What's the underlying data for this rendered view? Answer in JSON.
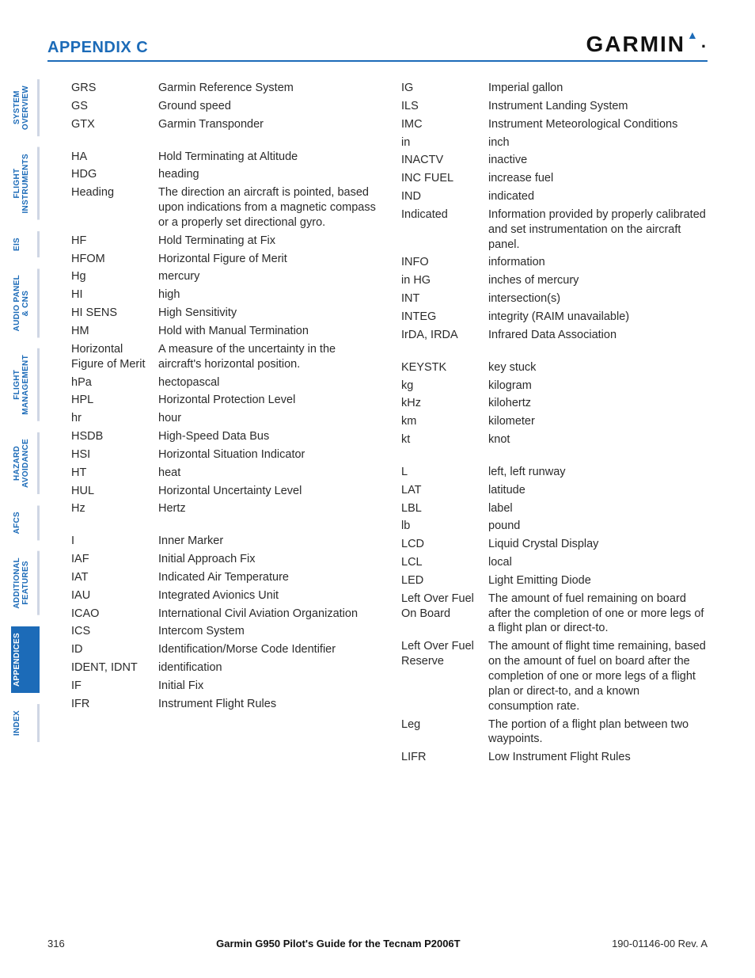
{
  "header": {
    "title": "APPENDIX C",
    "brand": "GARMIN"
  },
  "tabs": [
    {
      "label": "SYSTEM\nOVERVIEW",
      "active": false
    },
    {
      "label": "FLIGHT\nINSTRUMENTS",
      "active": false
    },
    {
      "label": "EIS",
      "active": false
    },
    {
      "label": "AUDIO PANEL\n& CNS",
      "active": false
    },
    {
      "label": "FLIGHT\nMANAGEMENT",
      "active": false
    },
    {
      "label": "HAZARD\nAVOIDANCE",
      "active": false
    },
    {
      "label": "AFCS",
      "active": false
    },
    {
      "label": "ADDITIONAL\nFEATURES",
      "active": false
    },
    {
      "label": "APPENDICES",
      "active": true
    },
    {
      "label": "INDEX",
      "active": false
    }
  ],
  "col1": [
    {
      "t": "GRS",
      "d": "Garmin Reference System"
    },
    {
      "t": "GS",
      "d": "Ground speed"
    },
    {
      "t": "GTX",
      "d": "Garmin Transponder"
    },
    {
      "gap": true
    },
    {
      "t": "HA",
      "d": "Hold Terminating at Altitude"
    },
    {
      "t": "HDG",
      "d": "heading"
    },
    {
      "t": "Heading",
      "d": "The direction an aircraft is pointed, based upon indications from a magnetic compass or a properly set directional gyro."
    },
    {
      "t": "HF",
      "d": "Hold Terminating at Fix"
    },
    {
      "t": "HFOM",
      "d": "Horizontal Figure of Merit"
    },
    {
      "t": "Hg",
      "d": "mercury"
    },
    {
      "t": "HI",
      "d": "high"
    },
    {
      "t": "HI SENS",
      "d": "High Sensitivity"
    },
    {
      "t": "HM",
      "d": "Hold with Manual Termination"
    },
    {
      "t": "Horizontal Figure of Merit",
      "d": "A measure of the uncertainty in the aircraft's horizontal position."
    },
    {
      "t": "hPa",
      "d": "hectopascal"
    },
    {
      "t": "HPL",
      "d": "Horizontal Protection Level"
    },
    {
      "t": "hr",
      "d": "hour"
    },
    {
      "t": "HSDB",
      "d": "High-Speed Data Bus"
    },
    {
      "t": "HSI",
      "d": "Horizontal Situation Indicator"
    },
    {
      "t": "HT",
      "d": "heat"
    },
    {
      "t": "HUL",
      "d": "Horizontal Uncertainty Level"
    },
    {
      "t": "Hz",
      "d": "Hertz"
    },
    {
      "gap": true
    },
    {
      "t": "I",
      "d": "Inner Marker"
    },
    {
      "t": "IAF",
      "d": "Initial Approach Fix"
    },
    {
      "t": "IAT",
      "d": "Indicated Air Temperature"
    },
    {
      "t": "IAU",
      "d": "Integrated Avionics Unit"
    },
    {
      "t": "ICAO",
      "d": "International Civil Aviation Organization"
    },
    {
      "t": "ICS",
      "d": "Intercom System"
    },
    {
      "t": "ID",
      "d": "Identification/Morse Code Identifier"
    },
    {
      "t": "IDENT, IDNT",
      "d": "identification"
    },
    {
      "t": "IF",
      "d": "Initial Fix"
    },
    {
      "t": "IFR",
      "d": "Instrument Flight Rules"
    }
  ],
  "col2": [
    {
      "t": "IG",
      "d": "Imperial gallon"
    },
    {
      "t": "ILS",
      "d": "Instrument Landing System"
    },
    {
      "t": "IMC",
      "d": "Instrument Meteorological Conditions"
    },
    {
      "t": "in",
      "d": "inch"
    },
    {
      "t": "INACTV",
      "d": "inactive"
    },
    {
      "t": "INC FUEL",
      "d": "increase fuel"
    },
    {
      "t": "IND",
      "d": "indicated"
    },
    {
      "t": "Indicated",
      "d": "Information provided by properly calibrated and set instrumentation on the aircraft panel."
    },
    {
      "t": "INFO",
      "d": "information"
    },
    {
      "t": "in HG",
      "d": "inches of mercury"
    },
    {
      "t": "INT",
      "d": "intersection(s)"
    },
    {
      "t": "INTEG",
      "d": "integrity (RAIM unavailable)"
    },
    {
      "t": "IrDA, IRDA",
      "d": "Infrared Data Association"
    },
    {
      "gap": true
    },
    {
      "t": "KEYSTK",
      "d": "key stuck"
    },
    {
      "t": "kg",
      "d": "kilogram"
    },
    {
      "t": "kHz",
      "d": "kilohertz"
    },
    {
      "t": "km",
      "d": "kilometer"
    },
    {
      "t": "kt",
      "d": "knot"
    },
    {
      "gap": true
    },
    {
      "t": "L",
      "d": "left, left runway"
    },
    {
      "t": "LAT",
      "d": "latitude"
    },
    {
      "t": "LBL",
      "d": "label"
    },
    {
      "t": "lb",
      "d": "pound"
    },
    {
      "t": "LCD",
      "d": "Liquid Crystal Display"
    },
    {
      "t": "LCL",
      "d": "local"
    },
    {
      "t": "LED",
      "d": "Light Emitting Diode"
    },
    {
      "t": "Left Over Fuel On Board",
      "d": "The amount of fuel remaining on board after the completion of one or more legs of a flight plan or direct-to."
    },
    {
      "t": "Left Over Fuel Reserve",
      "d": "The amount of flight time remaining, based on the amount of fuel on board after the completion of one or more legs of a flight plan or direct-to, and a known consumption rate."
    },
    {
      "t": "Leg",
      "d": "The portion of a flight plan between two waypoints."
    },
    {
      "t": "LIFR",
      "d": "Low Instrument Flight Rules"
    }
  ],
  "footer": {
    "page": "316",
    "title": "Garmin G950 Pilot's Guide for the Tecnam P2006T",
    "rev": "190-01146-00  Rev. A"
  },
  "colors": {
    "accent": "#1c6bb8",
    "text": "#2b2b2b",
    "tab_border": "#cfd6e4",
    "background": "#ffffff"
  }
}
